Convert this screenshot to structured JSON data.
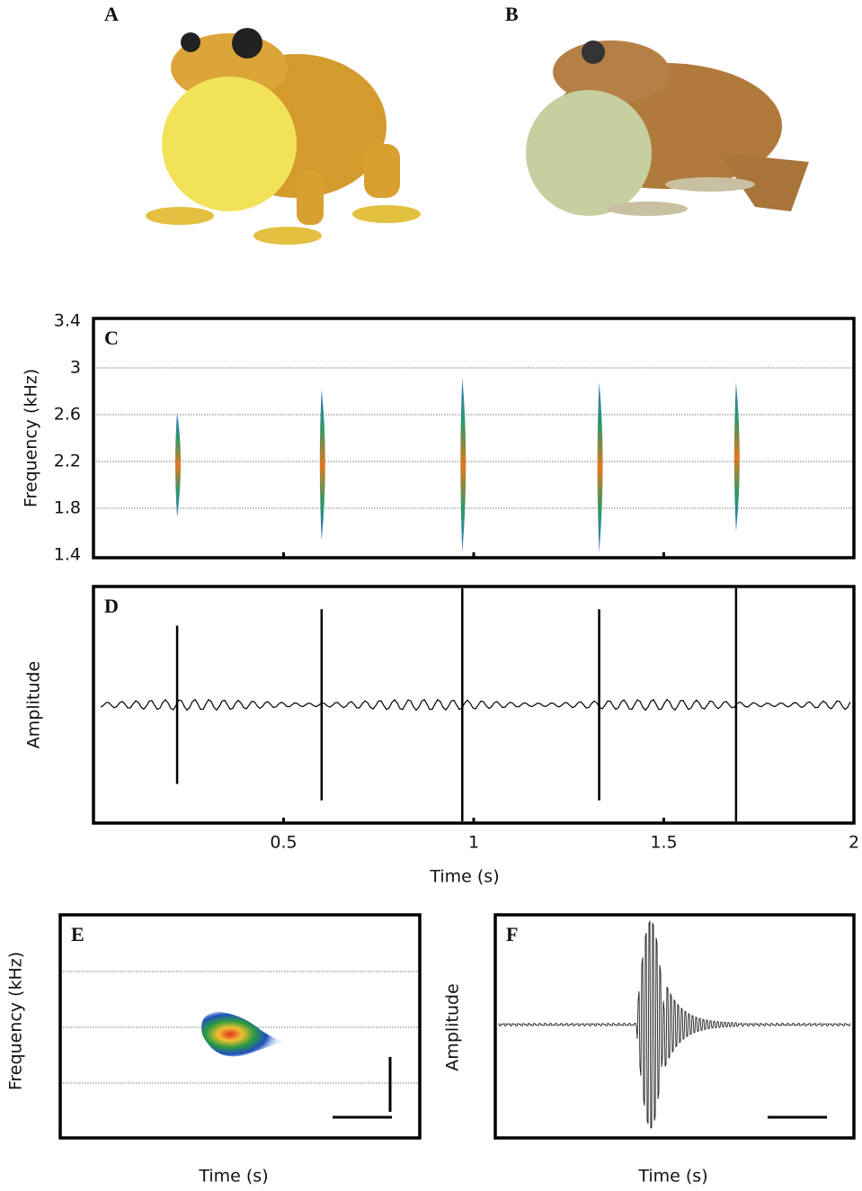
{
  "photos": [
    {
      "label": "A"
    },
    {
      "label": "B"
    }
  ],
  "chart_data": [
    {
      "type": "spectrogram",
      "label": "C",
      "ylabel": "Frequency (kHz)",
      "x": [
        0.22,
        0.6,
        0.97,
        1.33,
        1.69
      ],
      "values": [
        2.2,
        2.2,
        2.2,
        2.2,
        2.2
      ],
      "low": [
        1.72,
        1.52,
        1.42,
        1.42,
        1.6
      ],
      "high": [
        2.62,
        2.82,
        2.92,
        2.88,
        2.88
      ],
      "ylim": [
        1.4,
        3.4
      ],
      "yticks": [
        1.4,
        1.8,
        2.2,
        2.6,
        3,
        3.4
      ],
      "grid": true,
      "xlim": [
        0,
        2
      ]
    },
    {
      "type": "waveform",
      "label": "D",
      "ylabel": "Amplitude",
      "xlabel": "Time (s)",
      "x": [
        0.22,
        0.6,
        0.97,
        1.33,
        1.69
      ],
      "values": [
        0.68,
        0.82,
        1.0,
        0.82,
        1.0
      ],
      "ylim": [
        -1,
        1
      ],
      "xlim": [
        0,
        2
      ],
      "xticks": [
        0.5,
        1,
        1.5,
        2
      ]
    },
    {
      "type": "note",
      "label": "E",
      "ylabel": "Frequency (kHz)",
      "xlabel": "Time (s)",
      "grid": true
    },
    {
      "type": "pulse",
      "label": "F",
      "ylabel": "Amplitude",
      "xlabel": "Time (s)"
    }
  ]
}
